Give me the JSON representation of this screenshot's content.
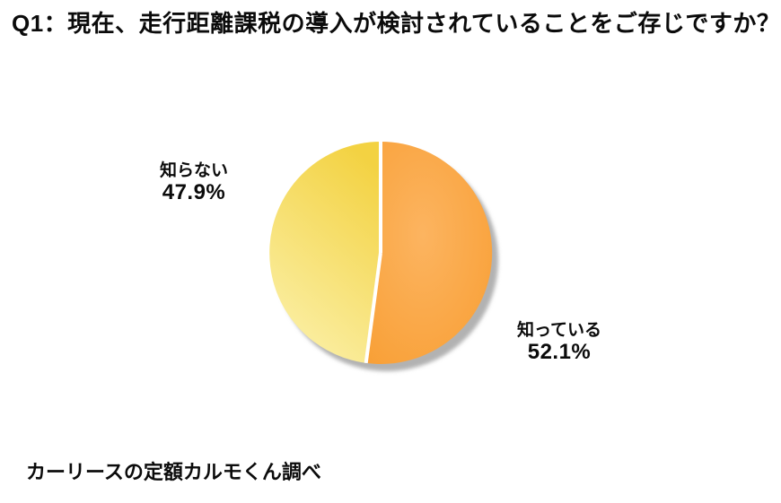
{
  "page": {
    "background_color": "#ffffff",
    "text_color": "#0b0b0b"
  },
  "chart_data": {
    "type": "pie",
    "title": "Q1：現在、走行距離課税の導入が検討されていることをご存じですか？",
    "start_angle": "top",
    "direction": "clockwise",
    "slices": [
      {
        "label": "知っている",
        "value": 52.1,
        "value_label": "52.1%",
        "color_inner": "#fcb460",
        "color_outer": "#f89e33"
      },
      {
        "label": "知らない",
        "value": 47.9,
        "value_label": "47.9%",
        "color_top": "#f3d242",
        "color_bottom": "#fbf0a8"
      }
    ],
    "divider_color": "#ffffff",
    "shadow_color": "#b2b2b2",
    "legend_position": "outside-labels"
  },
  "footer": {
    "source": "カーリースの定額カルモくん調べ"
  }
}
